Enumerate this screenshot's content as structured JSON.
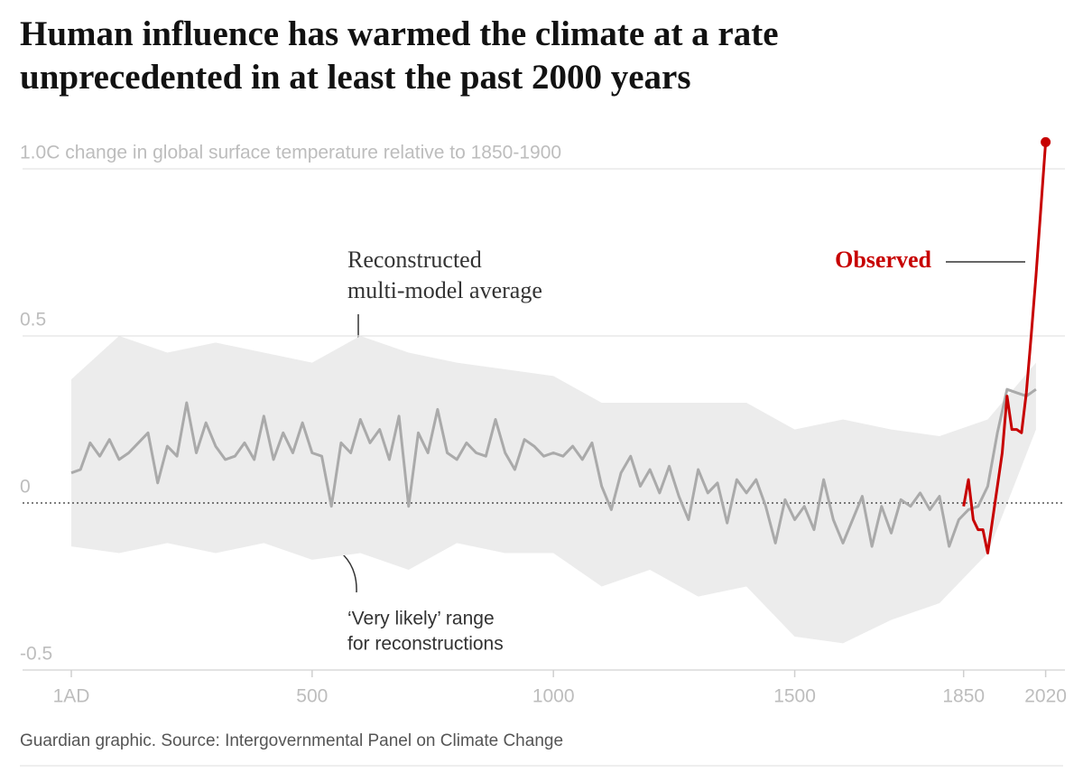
{
  "chart_data": {
    "type": "line",
    "title": "Human influence has warmed the climate at a rate unprecedented in at least the past 2000 years",
    "source": "Guardian graphic. Source: Intergovernmental Panel on Climate Change",
    "annotations": [
      [
        "Reconstructed",
        "multi-model average"
      ],
      [
        "‘Very likely’ range",
        "for reconstructions"
      ],
      [
        "Observed"
      ]
    ],
    "xlim": [
      -100,
      2060
    ],
    "xticks": [
      {
        "value": 1,
        "label": "1AD"
      },
      500,
      1000,
      1500,
      1850,
      2020
    ],
    "ylim": [
      -0.5,
      1.1
    ],
    "yticks": [
      -0.5,
      0,
      0.5,
      {
        "value": 1.0,
        "label": "1.0C change in global surface temperature relative to 1850-1900"
      }
    ],
    "band": {
      "color": "#ececec",
      "x": [
        1,
        100,
        200,
        300,
        400,
        500,
        600,
        700,
        800,
        900,
        1000,
        1100,
        1200,
        1300,
        1400,
        1500,
        1600,
        1700,
        1800,
        1900,
        2000
      ],
      "high": [
        0.37,
        0.5,
        0.45,
        0.48,
        0.45,
        0.42,
        0.5,
        0.45,
        0.42,
        0.4,
        0.38,
        0.3,
        0.3,
        0.3,
        0.3,
        0.22,
        0.25,
        0.22,
        0.2,
        0.25,
        0.42
      ],
      "low": [
        -0.13,
        -0.15,
        -0.12,
        -0.15,
        -0.12,
        -0.17,
        -0.15,
        -0.2,
        -0.12,
        -0.15,
        -0.15,
        -0.25,
        -0.2,
        -0.28,
        -0.25,
        -0.4,
        -0.42,
        -0.35,
        -0.3,
        -0.15,
        0.22
      ]
    },
    "series": [
      {
        "name": "Reconstructed multi-model average",
        "color": "#aaaaaa",
        "x": [
          1,
          20,
          40,
          60,
          80,
          100,
          120,
          140,
          160,
          180,
          200,
          220,
          240,
          260,
          280,
          300,
          320,
          340,
          360,
          380,
          400,
          420,
          440,
          460,
          480,
          500,
          520,
          540,
          560,
          580,
          600,
          620,
          640,
          660,
          680,
          700,
          720,
          740,
          760,
          780,
          800,
          820,
          840,
          860,
          880,
          900,
          920,
          940,
          960,
          980,
          1000,
          1020,
          1040,
          1060,
          1080,
          1100,
          1120,
          1140,
          1160,
          1180,
          1200,
          1220,
          1240,
          1260,
          1280,
          1300,
          1320,
          1340,
          1360,
          1380,
          1400,
          1420,
          1440,
          1460,
          1480,
          1500,
          1520,
          1540,
          1560,
          1580,
          1600,
          1620,
          1640,
          1660,
          1680,
          1700,
          1720,
          1740,
          1760,
          1780,
          1800,
          1820,
          1840,
          1860,
          1880,
          1900,
          1920,
          1940,
          1960,
          1980,
          2000
        ],
        "values": [
          0.09,
          0.1,
          0.18,
          0.14,
          0.19,
          0.13,
          0.15,
          0.18,
          0.21,
          0.06,
          0.17,
          0.14,
          0.3,
          0.15,
          0.24,
          0.17,
          0.13,
          0.14,
          0.18,
          0.13,
          0.26,
          0.13,
          0.21,
          0.15,
          0.24,
          0.15,
          0.14,
          -0.01,
          0.18,
          0.15,
          0.25,
          0.18,
          0.22,
          0.13,
          0.26,
          -0.01,
          0.21,
          0.15,
          0.28,
          0.15,
          0.13,
          0.18,
          0.15,
          0.14,
          0.25,
          0.15,
          0.1,
          0.19,
          0.17,
          0.14,
          0.15,
          0.14,
          0.17,
          0.13,
          0.18,
          0.05,
          -0.02,
          0.09,
          0.14,
          0.05,
          0.1,
          0.03,
          0.11,
          0.02,
          -0.05,
          0.1,
          0.03,
          0.06,
          -0.06,
          0.07,
          0.03,
          0.07,
          -0.01,
          -0.12,
          0.01,
          -0.05,
          -0.01,
          -0.08,
          0.07,
          -0.05,
          -0.12,
          -0.05,
          0.02,
          -0.13,
          -0.01,
          -0.09,
          0.01,
          -0.01,
          0.03,
          -0.02,
          0.02,
          -0.13,
          -0.05,
          -0.02,
          -0.01,
          0.05,
          0.21,
          0.34,
          0.33,
          0.32,
          0.34
        ]
      },
      {
        "name": "Observed",
        "color": "#c70000",
        "x": [
          1850,
          1860,
          1870,
          1880,
          1890,
          1900,
          1910,
          1920,
          1930,
          1940,
          1950,
          1960,
          1970,
          1980,
          1990,
          2000,
          2010,
          2020
        ],
        "values": [
          -0.01,
          0.07,
          -0.05,
          -0.08,
          -0.08,
          -0.15,
          -0.05,
          0.05,
          0.15,
          0.32,
          0.22,
          0.22,
          0.21,
          0.33,
          0.5,
          0.68,
          0.88,
          1.08
        ]
      }
    ]
  }
}
